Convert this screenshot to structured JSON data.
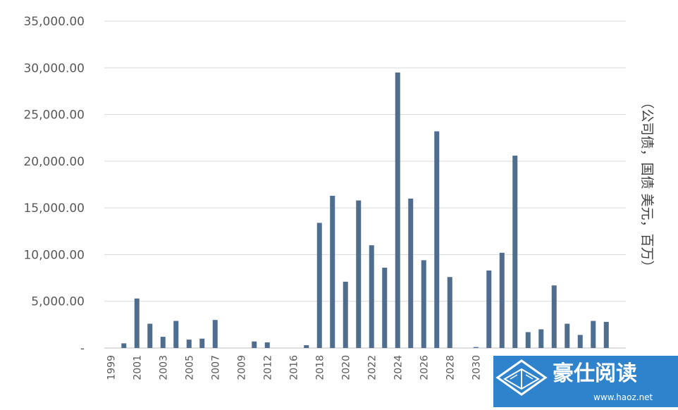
{
  "chart_data": {
    "type": "bar",
    "categories": [
      "1999",
      "2000",
      "2001",
      "2002",
      "2003",
      "2004",
      "2005",
      "2006",
      "2007",
      "2008",
      "2009",
      "2010",
      "2012",
      "2014",
      "2016",
      "2017",
      "2018",
      "2019",
      "2020",
      "2021",
      "2022",
      "2023",
      "2024",
      "2025",
      "2026",
      "2027",
      "2028",
      "2029",
      "2030",
      "2031",
      "2032",
      "2033",
      "2034",
      "2035",
      "2036",
      "2037",
      "2038",
      "2039",
      "2040",
      "2041"
    ],
    "category_labels": [
      "1999",
      "",
      "2001",
      "",
      "2003",
      "",
      "2005",
      "",
      "2007",
      "",
      "2009",
      "",
      "2012",
      "",
      "2016",
      "",
      "2018",
      "",
      "2020",
      "",
      "2022",
      "",
      "2024",
      "",
      "2026",
      "",
      "2028",
      "",
      "2030",
      "",
      "",
      "",
      "",
      "",
      "",
      "",
      "",
      "",
      "",
      ""
    ],
    "series": [
      {
        "values": [
          0,
          500,
          5300,
          2600,
          1200,
          2900,
          900,
          1000,
          3000,
          0,
          0,
          700,
          600,
          0,
          0,
          300,
          13400,
          16300,
          7100,
          15800,
          11000,
          8600,
          29500,
          16000,
          9400,
          23200,
          7600,
          0,
          100,
          8300,
          10200,
          20600,
          1700,
          2000,
          6700,
          2600,
          1400,
          2900,
          2800,
          0
        ]
      }
    ],
    "ylim": [
      0,
      35000
    ],
    "yticks": [
      0,
      5000,
      10000,
      15000,
      20000,
      25000,
      30000,
      35000
    ],
    "ytick_labels": [
      "-",
      "5,000.00",
      "10,000.00",
      "15,000.00",
      "20,000.00",
      "25,000.00",
      "30,000.00",
      "35,000.00"
    ],
    "ylabel": "（公司债，国债 美元，百万）",
    "xlabel": "",
    "title": "",
    "grid": true,
    "bar_color": "#4f6d8f"
  },
  "watermark": {
    "title": "豪仕阅读",
    "url": "www.haoz.net",
    "box_color": "#1f7ac9"
  }
}
